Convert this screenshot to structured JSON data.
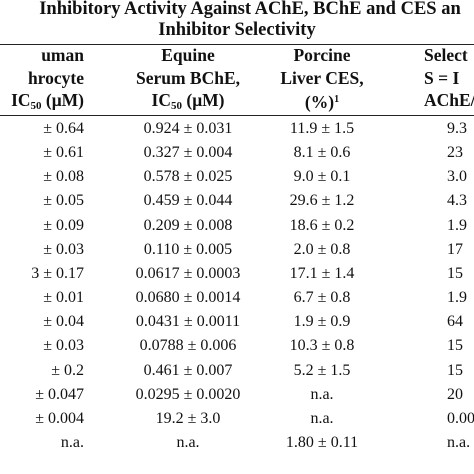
{
  "title": {
    "line1": "Inhibitory Activity Against AChE, BChE and CES an",
    "line2": "Inhibitor Selectivity"
  },
  "headers": {
    "col1": {
      "line1": "uman",
      "line2": "hrocyte",
      "line3_pre": "IC",
      "line3_sub": "50",
      "line3_post": " (μM)"
    },
    "col2": {
      "line1": "Equine",
      "line2": "Serum BChE,",
      "line3_pre": "IC",
      "line3_sub": "50",
      "line3_post": " (μM)"
    },
    "col3": {
      "line1": "Porcine",
      "line2": "Liver CES,",
      "line3_pre": "(%)",
      "line3_sup": "1"
    },
    "col4": {
      "line1": "Select",
      "line2": "S = I",
      "line3": "AChE/IC"
    }
  },
  "rows": [
    {
      "c1": "± 0.64",
      "c2": "0.924 ± 0.031",
      "c3": "11.9 ± 1.5",
      "c4": "9.3"
    },
    {
      "c1": "± 0.61",
      "c2": "0.327 ± 0.004",
      "c3": "8.1 ± 0.6",
      "c4": "23"
    },
    {
      "c1": "± 0.08",
      "c2": "0.578 ± 0.025",
      "c3": "9.0 ± 0.1",
      "c4": "3.0"
    },
    {
      "c1": "± 0.05",
      "c2": "0.459 ± 0.044",
      "c3": "29.6 ± 1.2",
      "c4": "4.3"
    },
    {
      "c1": "± 0.09",
      "c2": "0.209 ± 0.008",
      "c3": "18.6 ± 0.2",
      "c4": "1.9"
    },
    {
      "c1": "± 0.03",
      "c2": "0.110 ± 0.005",
      "c3": "2.0 ± 0.8",
      "c4": "17"
    },
    {
      "c1": "3 ± 0.17",
      "c2": "0.0617 ± 0.0003",
      "c3": "17.1 ± 1.4",
      "c4": "15"
    },
    {
      "c1": "± 0.01",
      "c2": "0.0680 ± 0.0014",
      "c3": "6.7 ± 0.8",
      "c4": "1.9"
    },
    {
      "c1": "± 0.04",
      "c2": "0.0431 ± 0.0011",
      "c3": "1.9 ± 0.9",
      "c4": "64"
    },
    {
      "c1": "± 0.03",
      "c2": "0.0788 ± 0.006",
      "c3": "10.3 ± 0.8",
      "c4": "15"
    },
    {
      "c1": "± 0.2",
      "c2": "0.461 ± 0.007",
      "c3": "5.2 ± 1.5",
      "c4": "15"
    },
    {
      "c1": "± 0.047",
      "c2": "0.0295 ± 0.0020",
      "c3": "n.a.",
      "c4": "20"
    },
    {
      "c1": "± 0.004",
      "c2": "19.2 ± 3.0",
      "c3": "n.a.",
      "c4": "0.00"
    },
    {
      "c1": "n.a.",
      "c2": "n.a.",
      "c3": "1.80 ± 0.11",
      "c4": "n.a."
    }
  ]
}
